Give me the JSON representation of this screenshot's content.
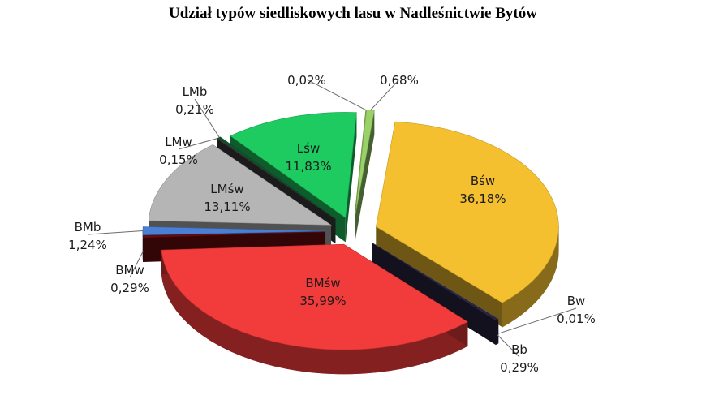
{
  "chart_data": {
    "type": "pie",
    "title": "Udział typów siedliskowych lasu w Nadleśnictwie Bytów",
    "legend": "none",
    "slices": [
      {
        "name": "Bśw",
        "value_label": "36,18%",
        "value": 36.18,
        "color": "#f5c02f"
      },
      {
        "name": "Bw",
        "value_label": "0,01%",
        "value": 0.01,
        "color": "#7b6c9e"
      },
      {
        "name": "Bb",
        "value_label": "0,29%",
        "value": 0.29,
        "color": "#2a2540"
      },
      {
        "name": "BMśw",
        "value_label": "35,99%",
        "value": 35.99,
        "color": "#f23b3b"
      },
      {
        "name": "BMw",
        "value_label": "0,29%",
        "value": 0.29,
        "color": "#6e0a10"
      },
      {
        "name": "BMb",
        "value_label": "1,24%",
        "value": 1.24,
        "color": "#4a7fd6"
      },
      {
        "name": "LMśw",
        "value_label": "13,11%",
        "value": 13.11,
        "color": "#b5b5b5"
      },
      {
        "name": "LMw",
        "value_label": "0,15%",
        "value": 0.15,
        "color": "#3b3b3b"
      },
      {
        "name": "LMb",
        "value_label": "0,21%",
        "value": 0.21,
        "color": "#0d5a2a"
      },
      {
        "name": "Lśw",
        "value_label": "11,83%",
        "value": 11.83,
        "color": "#1ecb60"
      },
      {
        "name": "",
        "value_label": "0,02%",
        "value": 0.02,
        "color": "#88b04a"
      },
      {
        "name": "",
        "value_label": "0,68%",
        "value": 0.68,
        "color": "#9ad26a"
      }
    ]
  }
}
